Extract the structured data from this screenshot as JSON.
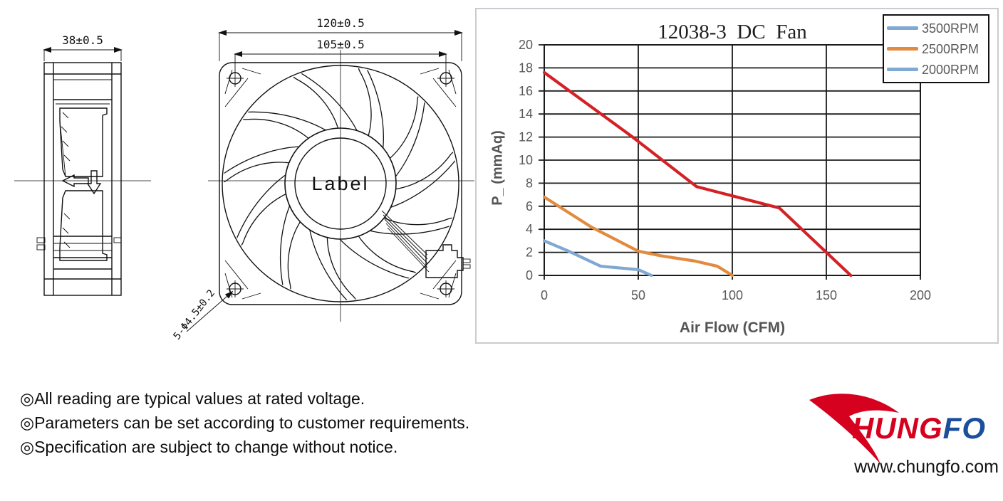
{
  "drawing": {
    "side_view": {
      "dim_width": "38±0.5"
    },
    "front_view": {
      "dim_outer": "120±0.5",
      "dim_holes": "105±0.5",
      "hub_label": "Label",
      "hole_callout": "5-Φ4.5±0.2"
    }
  },
  "chart": {
    "title": "12038-3  DC  Fan",
    "xlabel": "Air Flow (CFM)",
    "ylabel": "P_ (mmAq)"
  },
  "chart_data": {
    "type": "line",
    "title": "12038-3 DC Fan",
    "xlabel": "Air Flow (CFM)",
    "ylabel": "P_ (mmAq)",
    "xlim": [
      0,
      200
    ],
    "ylim": [
      0,
      20
    ],
    "x_ticks": [
      0,
      50,
      100,
      150,
      200
    ],
    "y_ticks": [
      0,
      2,
      4,
      6,
      8,
      10,
      12,
      14,
      16,
      18,
      20
    ],
    "grid": true,
    "legend_position": "top-right",
    "colors": {
      "grid": "#1b1b1b",
      "tick_text": "#595959"
    },
    "series": [
      {
        "name": "3500RPM",
        "color": "#d42125",
        "legend_color": "#7fa8d2",
        "points": [
          [
            0,
            17.6
          ],
          [
            47,
            12.0
          ],
          [
            81,
            7.7
          ],
          [
            100,
            6.9
          ],
          [
            125,
            5.85
          ],
          [
            150,
            2.0
          ],
          [
            163,
            0
          ]
        ]
      },
      {
        "name": "2500RPM",
        "color": "#e18a40",
        "legend_color": "#e18a40",
        "points": [
          [
            0,
            6.8
          ],
          [
            25,
            4.2
          ],
          [
            50,
            2.1
          ],
          [
            62,
            1.7
          ],
          [
            80,
            1.25
          ],
          [
            92,
            0.8
          ],
          [
            100,
            0
          ]
        ]
      },
      {
        "name": "2000RPM",
        "color": "#7fa8d2",
        "legend_color": "#7fa8d2",
        "points": [
          [
            0,
            3.0
          ],
          [
            13,
            2.1
          ],
          [
            30,
            0.8
          ],
          [
            50,
            0.5
          ],
          [
            57,
            0
          ]
        ]
      }
    ]
  },
  "notes": [
    "◎All reading are typical values at rated voltage.",
    "◎Parameters can be set according to customer requirements.",
    "◎Specification are subject to change without notice."
  ],
  "footer": {
    "brand_red": "HUNG",
    "brand_blue": "FO",
    "website": "www.chungfo.com"
  }
}
